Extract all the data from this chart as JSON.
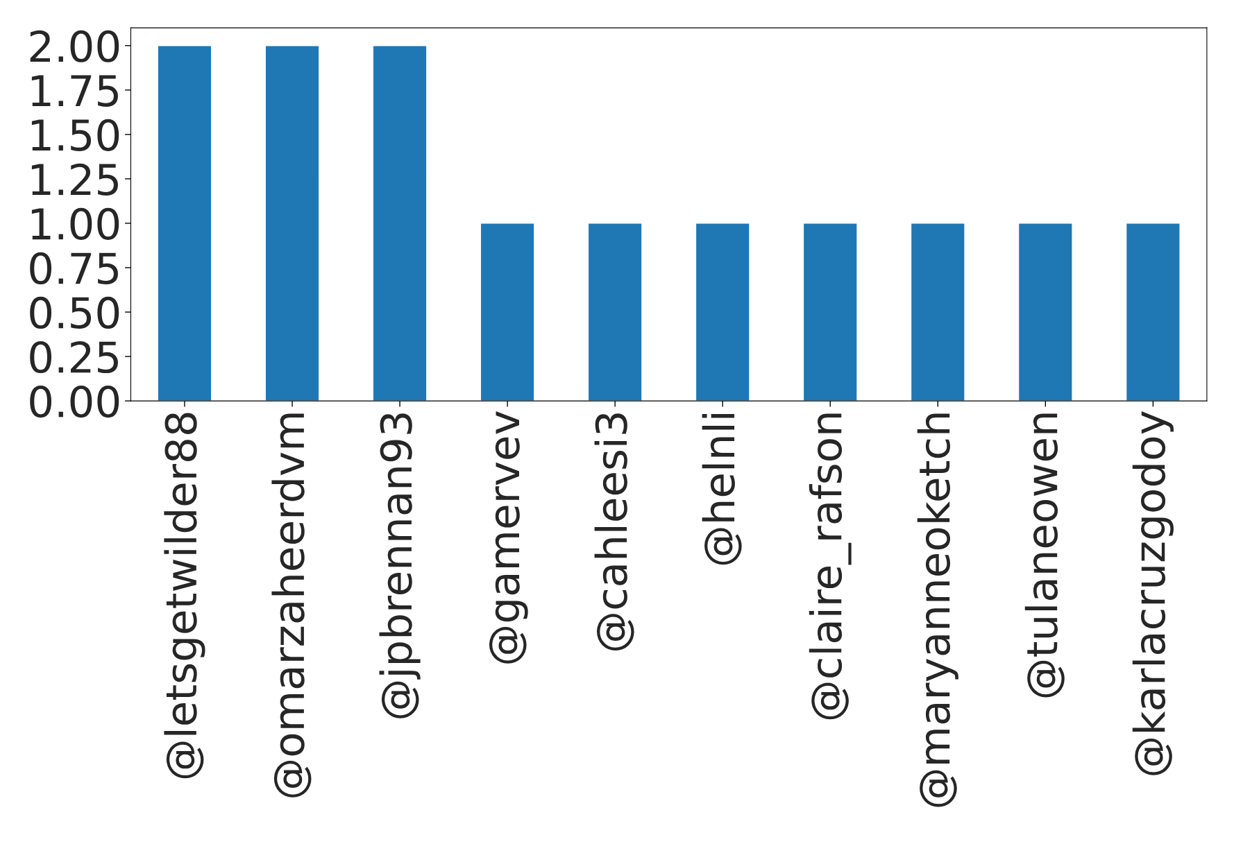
{
  "chart_data": {
    "type": "bar",
    "categories": [
      "@letsgetwilder88",
      "@omarzaheerdvm",
      "@jpbrennan93",
      "@gamervev",
      "@cahleesi3",
      "@helnli",
      "@claire_rafson",
      "@maryanneoketch",
      "@tulaneowen",
      "@karlacruzgodoy"
    ],
    "values": [
      2,
      2,
      2,
      1,
      1,
      1,
      1,
      1,
      1,
      1
    ],
    "color": "#1f77b4",
    "ylim": [
      0,
      2.1
    ],
    "yticks": [
      {
        "value": 0,
        "label": "0.00"
      },
      {
        "value": 0.25,
        "label": "0.25"
      },
      {
        "value": 0.5,
        "label": "0.50"
      },
      {
        "value": 0.75,
        "label": "0.75"
      },
      {
        "value": 1,
        "label": "1.00"
      },
      {
        "value": 1.25,
        "label": "1.25"
      },
      {
        "value": 1.5,
        "label": "1.50"
      },
      {
        "value": 1.75,
        "label": "1.75"
      },
      {
        "value": 2,
        "label": "2.00"
      }
    ],
    "grid": false,
    "legend": false
  }
}
